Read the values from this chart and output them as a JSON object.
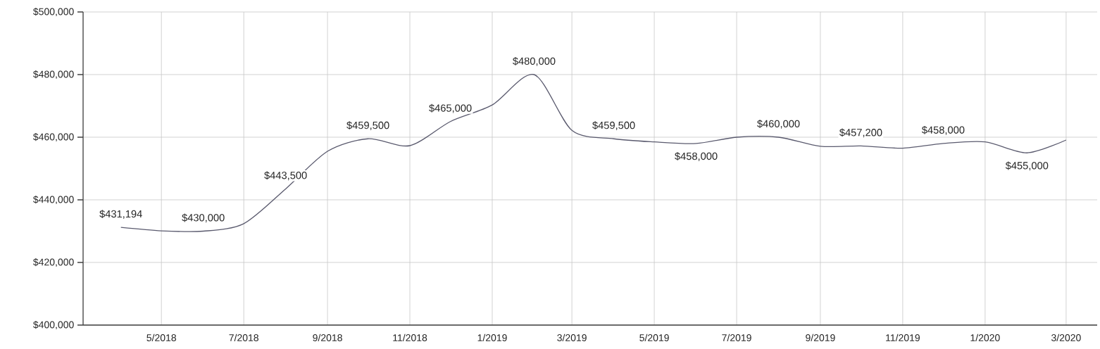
{
  "chart_data": {
    "type": "line",
    "x": [
      "2018-04",
      "2018-05",
      "2018-06",
      "2018-07",
      "2018-08",
      "2018-09",
      "2018-10",
      "2018-11",
      "2018-12",
      "2019-01",
      "2019-02",
      "2019-03",
      "2019-04",
      "2019-05",
      "2019-06",
      "2019-07",
      "2019-08",
      "2019-09",
      "2019-10",
      "2019-11",
      "2019-12",
      "2020-01",
      "2020-02",
      "2020-03"
    ],
    "series": [
      {
        "color": "#5a5a6e",
        "values": [
          431194,
          430100,
          430000,
          432400,
          443500,
          455500,
          459500,
          457300,
          465000,
          470300,
          480000,
          462200,
          459500,
          458500,
          458000,
          460000,
          460000,
          457100,
          457200,
          456500,
          458000,
          458500,
          455000,
          459100
        ],
        "value_labels": [
          "$431,194",
          null,
          "$430,000",
          null,
          "$443,500",
          null,
          "$459,500",
          null,
          "$465,000",
          null,
          "$480,000",
          null,
          "$459,500",
          null,
          "$458,000",
          null,
          "$460,000",
          null,
          "$457,200",
          null,
          "$458,000",
          null,
          "$455,000",
          null
        ]
      }
    ],
    "xlim": [
      "2018-03-04",
      "2020-03-24"
    ],
    "xticks": [
      {
        "value": "2018-05",
        "label": "5/2018"
      },
      {
        "value": "2018-07",
        "label": "7/2018"
      },
      {
        "value": "2018-09",
        "label": "9/2018"
      },
      {
        "value": "2018-11",
        "label": "11/2018"
      },
      {
        "value": "2019-01",
        "label": "1/2019"
      },
      {
        "value": "2019-03",
        "label": "3/2019"
      },
      {
        "value": "2019-05",
        "label": "5/2019"
      },
      {
        "value": "2019-07",
        "label": "7/2019"
      },
      {
        "value": "2019-09",
        "label": "9/2019"
      },
      {
        "value": "2019-11",
        "label": "11/2019"
      },
      {
        "value": "2020-01",
        "label": "1/2020"
      },
      {
        "value": "2020-03",
        "label": "3/2020"
      }
    ],
    "ylim": [
      400000,
      500000
    ],
    "yticks": [
      {
        "value": 400000,
        "label": "$400,000"
      },
      {
        "value": 420000,
        "label": "$420,000"
      },
      {
        "value": 440000,
        "label": "$440,000"
      },
      {
        "value": 460000,
        "label": "$460,000"
      },
      {
        "value": 480000,
        "label": "$480,000"
      },
      {
        "value": 500000,
        "label": "$500,000"
      }
    ],
    "grid": true,
    "marker": "none",
    "line_style": "solid"
  }
}
